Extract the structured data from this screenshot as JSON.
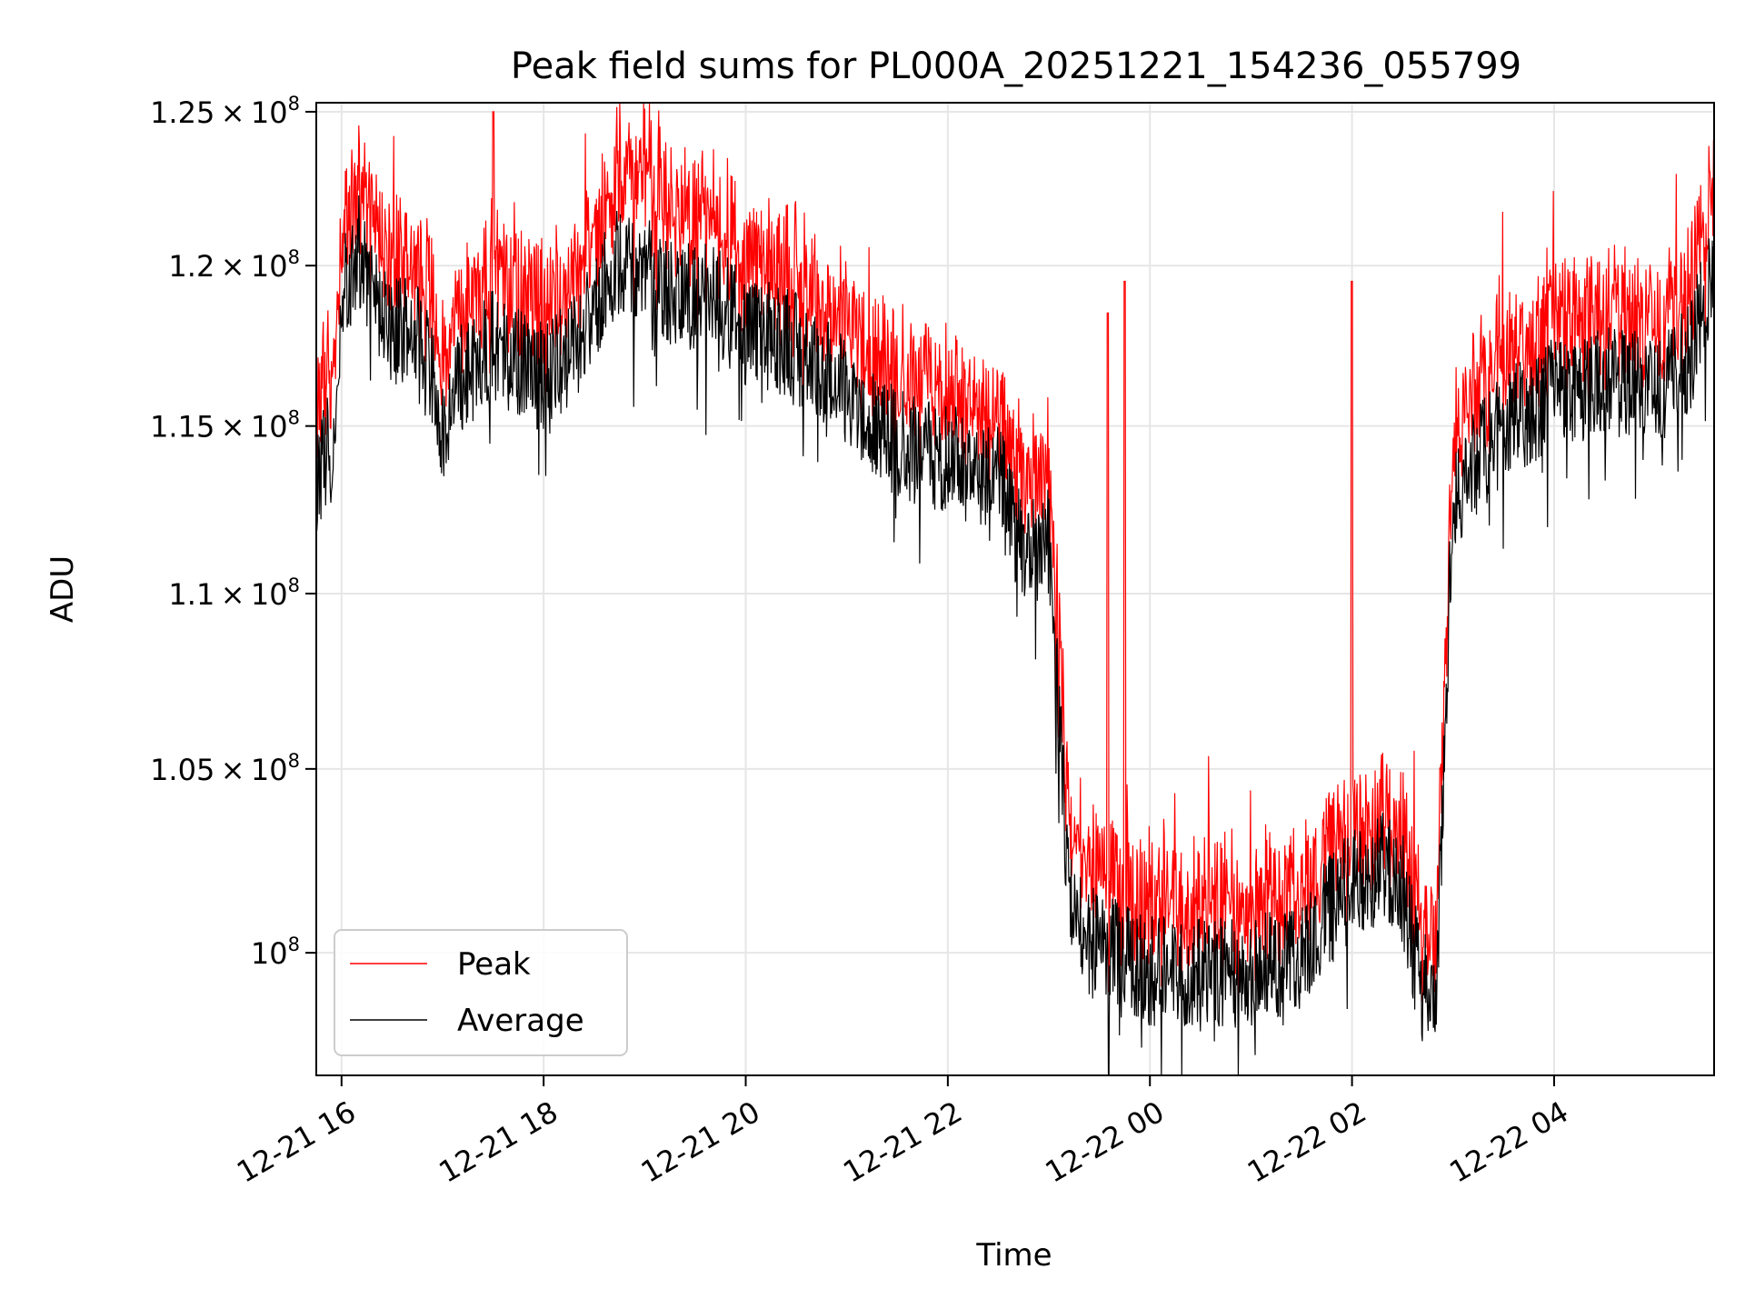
{
  "chart_data": {
    "type": "line",
    "title": "Peak field sums for PL000A_20251221_154236_055799",
    "xlabel": "Time",
    "ylabel": "ADU",
    "yscale": "log",
    "grid": true,
    "legend_location": "lower-left",
    "xlim": [
      "2025-12-21 15:45",
      "2025-12-22 05:35"
    ],
    "ylim": [
      96800000,
      125300000
    ],
    "x_ticks": [
      {
        "time": "2025-12-21 16:00",
        "label": "12-21 16"
      },
      {
        "time": "2025-12-21 18:00",
        "label": "12-21 18"
      },
      {
        "time": "2025-12-21 20:00",
        "label": "12-21 20"
      },
      {
        "time": "2025-12-21 22:00",
        "label": "12-21 22"
      },
      {
        "time": "2025-12-22 00:00",
        "label": "12-22 00"
      },
      {
        "time": "2025-12-22 02:00",
        "label": "12-22 02"
      },
      {
        "time": "2025-12-22 04:00",
        "label": "12-22 04"
      }
    ],
    "y_ticks": [
      {
        "value": 100000000,
        "mantissa": "",
        "exponent": "8"
      },
      {
        "value": 105000000,
        "mantissa": "1.05",
        "exponent": "8"
      },
      {
        "value": 110000000,
        "mantissa": "1.1",
        "exponent": "8"
      },
      {
        "value": 115000000,
        "mantissa": "1.15",
        "exponent": "8"
      },
      {
        "value": 120000000,
        "mantissa": "1.2",
        "exponent": "8"
      },
      {
        "value": 125000000,
        "mantissa": "1.25",
        "exponent": "8"
      }
    ],
    "series": [
      {
        "name": "Peak",
        "color": "#ff0000",
        "x": [
          "2025-12-21 15:45",
          "2025-12-21 15:55",
          "2025-12-21 16:00",
          "2025-12-21 16:10",
          "2025-12-21 16:20",
          "2025-12-21 16:30",
          "2025-12-21 16:45",
          "2025-12-21 17:00",
          "2025-12-21 17:10",
          "2025-12-21 17:20",
          "2025-12-21 17:30",
          "2025-12-21 17:45",
          "2025-12-21 18:00",
          "2025-12-21 18:20",
          "2025-12-21 18:40",
          "2025-12-21 19:00",
          "2025-12-21 19:20",
          "2025-12-21 19:40",
          "2025-12-21 20:00",
          "2025-12-21 20:30",
          "2025-12-21 21:00",
          "2025-12-21 21:30",
          "2025-12-21 22:00",
          "2025-12-21 22:30",
          "2025-12-21 22:45",
          "2025-12-21 23:00",
          "2025-12-21 23:10",
          "2025-12-21 23:15",
          "2025-12-21 23:30",
          "2025-12-21 23:45",
          "2025-12-22 00:00",
          "2025-12-22 00:30",
          "2025-12-22 01:00",
          "2025-12-22 01:30",
          "2025-12-22 02:00",
          "2025-12-22 02:20",
          "2025-12-22 02:30",
          "2025-12-22 02:40",
          "2025-12-22 02:50",
          "2025-12-22 03:00",
          "2025-12-22 03:30",
          "2025-12-22 04:00",
          "2025-12-22 04:30",
          "2025-12-22 05:00",
          "2025-12-22 05:20",
          "2025-12-22 05:35"
        ],
        "values": [
          115000000,
          116500000,
          120500000,
          122000000,
          120500000,
          119500000,
          119500000,
          116500000,
          118000000,
          118500000,
          119500000,
          118500000,
          118000000,
          119000000,
          122000000,
          122500000,
          121000000,
          121000000,
          119500000,
          119000000,
          117500000,
          116000000,
          115500000,
          114500000,
          112500000,
          113000000,
          104500000,
          102500000,
          101500000,
          101000000,
          101000000,
          100800000,
          100800000,
          101200000,
          103000000,
          103200000,
          102800000,
          100200000,
          99500000,
          114500000,
          116500000,
          117500000,
          118000000,
          117500000,
          118500000,
          122000000
        ]
      },
      {
        "name": "Average",
        "color": "#000000",
        "x": [
          "2025-12-21 15:45",
          "2025-12-21 15:55",
          "2025-12-21 16:00",
          "2025-12-21 16:10",
          "2025-12-21 16:20",
          "2025-12-21 16:30",
          "2025-12-21 16:45",
          "2025-12-21 17:00",
          "2025-12-21 17:10",
          "2025-12-21 17:20",
          "2025-12-21 17:30",
          "2025-12-21 17:45",
          "2025-12-21 18:00",
          "2025-12-21 18:20",
          "2025-12-21 18:40",
          "2025-12-21 19:00",
          "2025-12-21 19:20",
          "2025-12-21 19:40",
          "2025-12-21 20:00",
          "2025-12-21 20:30",
          "2025-12-21 21:00",
          "2025-12-21 21:30",
          "2025-12-21 22:00",
          "2025-12-21 22:30",
          "2025-12-21 22:45",
          "2025-12-21 23:00",
          "2025-12-21 23:10",
          "2025-12-21 23:15",
          "2025-12-21 23:30",
          "2025-12-21 23:45",
          "2025-12-22 00:00",
          "2025-12-22 00:30",
          "2025-12-22 01:00",
          "2025-12-22 01:30",
          "2025-12-22 02:00",
          "2025-12-22 02:20",
          "2025-12-22 02:30",
          "2025-12-22 02:40",
          "2025-12-22 02:50",
          "2025-12-22 03:00",
          "2025-12-22 03:30",
          "2025-12-22 04:00",
          "2025-12-22 04:30",
          "2025-12-22 05:00",
          "2025-12-22 05:20",
          "2025-12-22 05:35"
        ],
        "values": [
          113500000,
          114500000,
          119000000,
          120500000,
          119000000,
          118000000,
          118000000,
          115000000,
          116500000,
          117000000,
          117500000,
          117000000,
          116500000,
          117500000,
          120000000,
          120000000,
          119000000,
          119000000,
          118000000,
          117500000,
          116000000,
          114500000,
          114000000,
          113500000,
          111000000,
          111500000,
          103000000,
          101000000,
          100000000,
          100000000,
          99500000,
          99500000,
          99500000,
          100000000,
          102000000,
          102300000,
          101800000,
          99300000,
          98500000,
          113000000,
          115000000,
          116000000,
          116500000,
          116000000,
          117000000,
          120000000
        ]
      }
    ],
    "spikes": [
      {
        "series": "Peak",
        "time": "2025-12-21 17:30",
        "value": 125000000
      },
      {
        "series": "Peak",
        "time": "2025-12-21 23:35",
        "value": 118500000
      },
      {
        "series": "Peak",
        "time": "2025-12-21 23:45",
        "value": 119500000
      },
      {
        "series": "Peak",
        "time": "2025-12-22 02:00",
        "value": 119500000
      }
    ]
  }
}
